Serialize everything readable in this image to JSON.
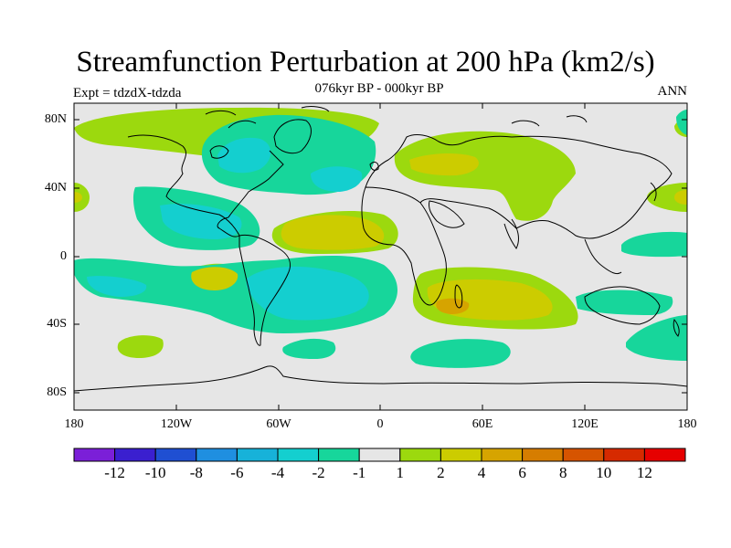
{
  "title": "Streamfunction Perturbation at 200 hPa (km2/s)",
  "subtitle": "076kyr BP - 000kyr BP",
  "left_label": "Expt = tdzdX-tdzda",
  "right_label": "ANN",
  "axes": {
    "lat_ticks": [
      "80N",
      "40N",
      "0",
      "40S",
      "80S"
    ],
    "lon_ticks": [
      "180",
      "120W",
      "60W",
      "0",
      "60E",
      "120E",
      "180"
    ]
  },
  "colorbar": {
    "labels": [
      "-12",
      "-10",
      "-8",
      "-6",
      "-4",
      "-2",
      "-1",
      "1",
      "2",
      "4",
      "6",
      "8",
      "10",
      "12"
    ],
    "colors": [
      "#7b1fd8",
      "#3a1fcf",
      "#1f4fd2",
      "#1f8fe0",
      "#17b2d9",
      "#14cfcf",
      "#17d69b",
      "#e6e6e6",
      "#9cd90e",
      "#cccc00",
      "#d6a400",
      "#d67d00",
      "#d65400",
      "#d62a00",
      "#e60000"
    ]
  },
  "map": {
    "background_color": "#e6e6e6",
    "coastline_color": "#000000"
  }
}
